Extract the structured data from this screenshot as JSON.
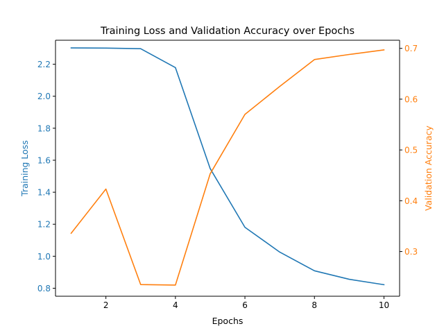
{
  "chart_data": {
    "type": "line",
    "title": "Training Loss and Validation Accuracy over Epochs",
    "xlabel": "Epochs",
    "ylabel_left": "Training Loss",
    "ylabel_right": "Validation Accuracy",
    "x": [
      1,
      2,
      3,
      4,
      5,
      6,
      7,
      8,
      9,
      10
    ],
    "xlim": [
      0.55,
      10.45
    ],
    "xticks": [
      2,
      4,
      6,
      8,
      10
    ],
    "ylim_left": [
      0.75,
      2.35
    ],
    "yticks_left": [
      0.8,
      1.0,
      1.2,
      1.4,
      1.6,
      1.8,
      2.0,
      2.2
    ],
    "ylim_right": [
      0.212,
      0.716
    ],
    "yticks_right": [
      0.3,
      0.4,
      0.5,
      0.6,
      0.7
    ],
    "grid": false,
    "series": [
      {
        "axis": "left",
        "color": "#1f77b4",
        "values": [
          2.302,
          2.301,
          2.297,
          2.179,
          1.548,
          1.181,
          1.026,
          0.909,
          0.856,
          0.822
        ]
      },
      {
        "axis": "right",
        "color": "#ff7f0e",
        "values": [
          0.336,
          0.423,
          0.235,
          0.234,
          0.453,
          0.57,
          0.625,
          0.678,
          0.688,
          0.697
        ]
      }
    ]
  }
}
